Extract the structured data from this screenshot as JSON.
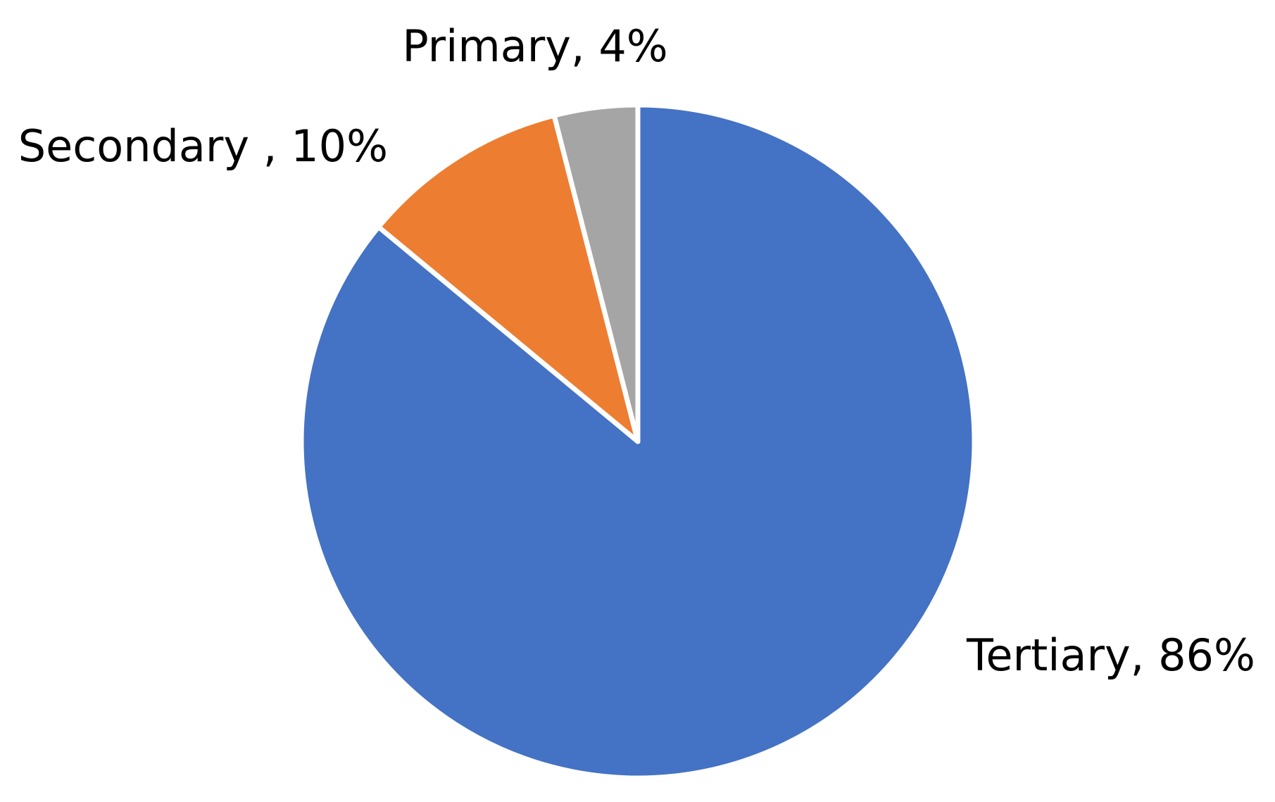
{
  "chart_data": {
    "type": "pie",
    "values": [
      86,
      10,
      4
    ],
    "value_labels": [
      "Tertiary, 86%",
      "Secondary , 10%",
      "Primary, 4%"
    ],
    "colors": [
      "#4472c4",
      "#ed7d31",
      "#a5a5a5"
    ]
  }
}
